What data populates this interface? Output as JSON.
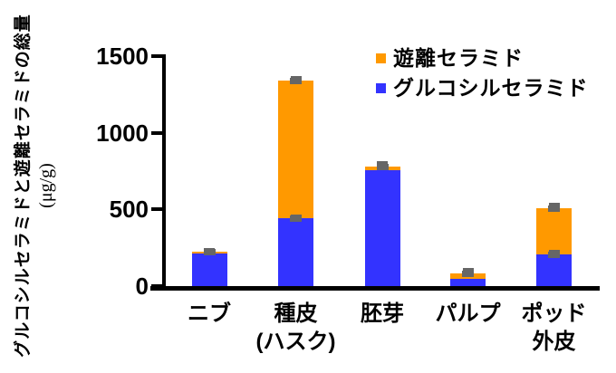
{
  "chart_data": {
    "type": "stacked_bar",
    "title": "",
    "y_axis": {
      "title": "グルコシルセラミドと遊離セラミドの総量",
      "unit": "(μg/g)",
      "ticks": [
        0,
        500,
        1000,
        1500
      ],
      "range": [
        0,
        1500
      ],
      "grid": false
    },
    "legend_position": "top-right",
    "legend": [
      {
        "label": "遊離セラミド",
        "color": "#FF9900"
      },
      {
        "label": "グルコシルセラミド",
        "color": "#3333FF"
      }
    ],
    "categories": [
      {
        "line1": "ニブ",
        "line2": ""
      },
      {
        "line1": "種皮",
        "line2": "(ハスク)"
      },
      {
        "line1": "胚芽",
        "line2": ""
      },
      {
        "line1": "パルプ",
        "line2": ""
      },
      {
        "line1": "ポッド",
        "line2": "外皮"
      }
    ],
    "series": [
      {
        "name": "グルコシルセラミド",
        "color": "#3333FF",
        "values": [
          215,
          440,
          755,
          50,
          205
        ]
      },
      {
        "name": "遊離セラミド",
        "color": "#FF9900",
        "values": [
          10,
          900,
          25,
          35,
          305
        ]
      }
    ],
    "totals": [
      225,
      1340,
      780,
      85,
      510
    ],
    "error_bars": [
      {
        "category_index": 0,
        "marks": [
          {
            "level": "total",
            "size": 15
          }
        ]
      },
      {
        "category_index": 1,
        "marks": [
          {
            "level": "glucosylceramide_top",
            "size": 20
          },
          {
            "level": "total",
            "size": 25
          }
        ]
      },
      {
        "category_index": 2,
        "marks": [
          {
            "level": "total",
            "size": 30
          }
        ]
      },
      {
        "category_index": 3,
        "marks": [
          {
            "level": "total",
            "size": 25
          }
        ]
      },
      {
        "category_index": 4,
        "marks": [
          {
            "level": "glucosylceramide_top",
            "size": 25
          },
          {
            "level": "total",
            "size": 30
          }
        ]
      }
    ],
    "colors": {
      "error_bar": "#666666",
      "axis": "#000000",
      "background": "#FFFFFF"
    }
  }
}
